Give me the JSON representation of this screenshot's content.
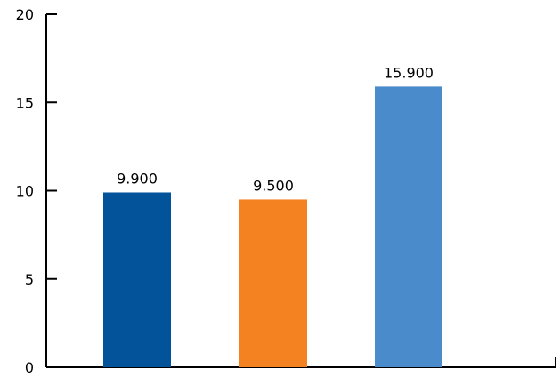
{
  "chart_data": {
    "type": "bar",
    "categories": [
      "",
      "",
      ""
    ],
    "values": [
      9.9,
      9.5,
      15.9
    ],
    "data_labels": [
      "9.900",
      "9.500",
      "15.900"
    ],
    "colors": [
      "#02539a",
      "#f58220",
      "#4a8ccb"
    ],
    "title": "",
    "xlabel": "",
    "ylabel": "",
    "ylim": [
      0,
      20
    ],
    "yticks": [
      0,
      5,
      10,
      15,
      20
    ],
    "ytick_labels": [
      "0",
      "5",
      "10",
      "15",
      "20"
    ],
    "grid": false,
    "legend": "none"
  }
}
